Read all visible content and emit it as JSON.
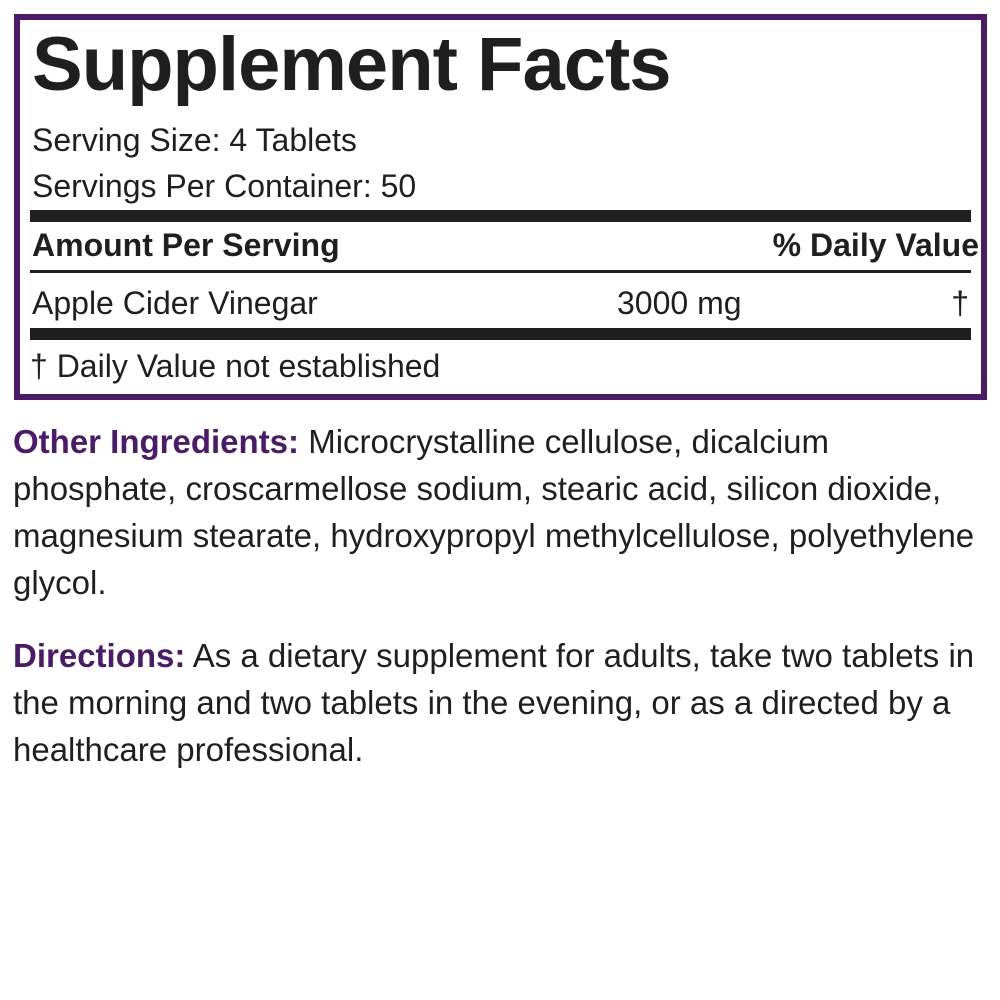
{
  "facts": {
    "title": "Supplement Facts",
    "serving_size": "Serving Size: 4 Tablets",
    "servings_per_container": "Servings Per Container: 50",
    "header_left": "Amount Per Serving",
    "header_right": "% Daily Value",
    "rows": [
      {
        "name": "Apple Cider Vinegar",
        "amount": "3000 mg",
        "dv": "†"
      }
    ],
    "footnote": "† Daily Value not established"
  },
  "other_ingredients": {
    "label": "Other Ingredients:",
    "text": " Microcrystalline cellulose, dicalcium phosphate, croscarmellose sodium, stearic acid, silicon dioxide, magnesium stearate, hydroxypropyl methylcellulose, polyethylene glycol."
  },
  "directions": {
    "label": "Directions:",
    "text": " As a dietary supplement for adults, take two tablets in the morning and two tablets in the evening, or as a directed by a healthcare professional."
  },
  "colors": {
    "accent": "#4b1a6b",
    "text": "#1f1f1f"
  }
}
